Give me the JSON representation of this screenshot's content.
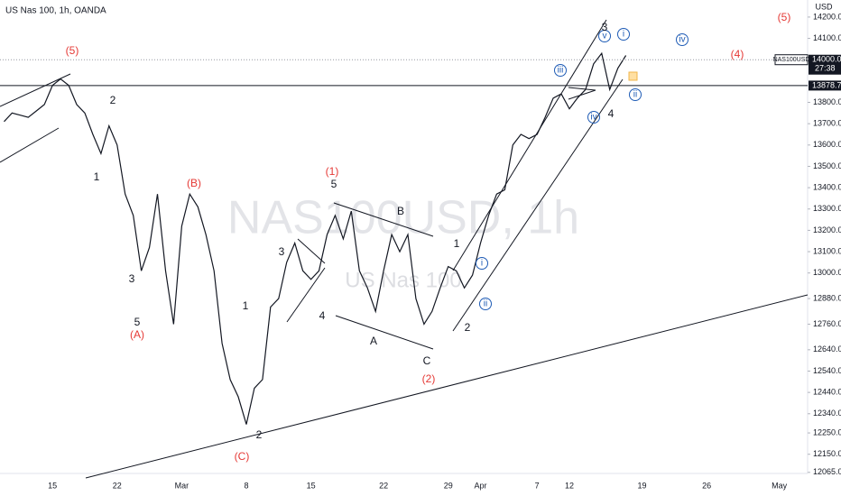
{
  "chart_data": {
    "type": "line",
    "title": "US Nas 100, 1h, OANDA",
    "watermark": "NAS100USD, 1h",
    "watermark_sub": "US Nas 100",
    "currency": "USD",
    "symbol": "NAS100USD",
    "countdown": "27:38",
    "price_lines": [
      {
        "value": 14000,
        "label": "14000.0"
      },
      {
        "value": 13878.7,
        "label": "13878.7"
      }
    ],
    "categories": [
      null,
      null,
      null,
      null,
      null,
      null,
      "15",
      null,
      null,
      null,
      null,
      null,
      null,
      null,
      "22",
      null,
      null,
      null,
      null,
      null,
      null,
      null,
      "Mar",
      null,
      null,
      null,
      null,
      null,
      null,
      null,
      "8",
      null,
      null,
      null,
      null,
      null,
      null,
      null,
      "15",
      null,
      null,
      null,
      null,
      null,
      null,
      null,
      null,
      "22",
      null,
      null,
      null,
      null,
      null,
      null,
      null,
      "29",
      null,
      null,
      null,
      "Apr",
      null,
      null,
      null,
      null,
      null,
      null,
      "7",
      null,
      null,
      null,
      "12",
      null,
      null,
      null,
      null,
      null,
      null,
      null,
      null,
      "19",
      null,
      null,
      null,
      null,
      null,
      null,
      null,
      "26",
      null,
      null,
      null,
      null,
      null,
      null,
      null,
      null,
      "May",
      null,
      null,
      null
    ],
    "series": [
      {
        "color": "#131722",
        "values": [
          13710,
          13750,
          13740,
          13730,
          13760,
          13790,
          13880,
          13910,
          13880,
          13790,
          13750,
          13650,
          13560,
          13690,
          13600,
          13370,
          13270,
          13010,
          13120,
          13370,
          13010,
          12760,
          13220,
          13370,
          13310,
          13180,
          13010,
          12670,
          12500,
          12420,
          12290,
          12460,
          12500,
          12840,
          12880,
          13050,
          13140,
          13010,
          12970,
          13010,
          13180,
          13270,
          13160,
          13290,
          13010,
          12930,
          12820,
          13010,
          13180,
          13100,
          13180,
          12880,
          12760,
          12820,
          12930,
          13030,
          13010,
          12930,
          12990,
          13140,
          13270,
          13370,
          13390,
          13600,
          13650,
          13630,
          13650,
          13730,
          13820,
          13840,
          13770,
          13820,
          13860,
          13980,
          14030,
          13860,
          13960,
          14020,
          null,
          null,
          null,
          null,
          null,
          null,
          null,
          null,
          null,
          null,
          null,
          null,
          null,
          null,
          null,
          null,
          null,
          null,
          null,
          null,
          null,
          null
        ]
      }
    ],
    "ylim": [
      12060,
      14280
    ],
    "yticks": [
      {
        "value": 14200,
        "label": "14200.0"
      },
      {
        "value": 14100,
        "label": "14100.0"
      },
      {
        "value": 13800,
        "label": "13800.0"
      },
      {
        "value": 13700,
        "label": "13700.0"
      },
      {
        "value": 13600,
        "label": "13600.0"
      },
      {
        "value": 13500,
        "label": "13500.0"
      },
      {
        "value": 13400,
        "label": "13400.0"
      },
      {
        "value": 13300,
        "label": "13300.0"
      },
      {
        "value": 13200,
        "label": "13200.0"
      },
      {
        "value": 13100,
        "label": "13100.0"
      },
      {
        "value": 13000,
        "label": "13000.0"
      },
      {
        "value": 12880,
        "label": "12880.0"
      },
      {
        "value": 12760,
        "label": "12760.0"
      },
      {
        "value": 12640,
        "label": "12640.0"
      },
      {
        "value": 12540,
        "label": "12540.0"
      },
      {
        "value": 12440,
        "label": "12440.0"
      },
      {
        "value": 12340,
        "label": "12340.0"
      },
      {
        "value": 12250,
        "label": "12250.0"
      },
      {
        "value": 12150,
        "label": "12150.0"
      },
      {
        "value": 12065,
        "label": "12065.0"
      }
    ],
    "annotations": [
      {
        "text": "(5)",
        "color": "#e53935"
      },
      {
        "text": "2",
        "color": "#131722"
      },
      {
        "text": "1",
        "color": "#131722"
      },
      {
        "text": "(B)",
        "color": "#e53935"
      },
      {
        "text": "3",
        "color": "#131722"
      },
      {
        "text": "5",
        "color": "#131722"
      },
      {
        "text": "(A)",
        "color": "#e53935"
      },
      {
        "text": "1",
        "color": "#131722"
      },
      {
        "text": "2",
        "color": "#131722"
      },
      {
        "text": "(C)",
        "color": "#e53935"
      },
      {
        "text": "3",
        "color": "#131722"
      },
      {
        "text": "4",
        "color": "#131722"
      },
      {
        "text": "(1)",
        "color": "#e53935"
      },
      {
        "text": "5",
        "color": "#131722"
      },
      {
        "text": "B",
        "color": "#131722"
      },
      {
        "text": "A",
        "color": "#131722"
      },
      {
        "text": "C",
        "color": "#131722"
      },
      {
        "text": "(2)",
        "color": "#e53935"
      },
      {
        "text": "1",
        "color": "#131722"
      },
      {
        "text": "2",
        "color": "#131722"
      },
      {
        "text": "i",
        "color": "#1e5bb5"
      },
      {
        "text": "ii",
        "color": "#1e5bb5"
      },
      {
        "text": "iii",
        "color": "#1e5bb5"
      },
      {
        "text": "iv",
        "color": "#1e5bb5"
      },
      {
        "text": "4",
        "color": "#131722"
      },
      {
        "text": "v",
        "color": "#1e5bb5"
      },
      {
        "text": "3",
        "color": "#131722"
      },
      {
        "text": "i",
        "color": "#1e5bb5"
      },
      {
        "text": "ii",
        "color": "#1e5bb5"
      },
      {
        "text": "iv",
        "color": "#1e5bb5"
      },
      {
        "text": "(4)",
        "color": "#e53935"
      },
      {
        "text": "(5)",
        "color": "#e53935"
      }
    ]
  }
}
